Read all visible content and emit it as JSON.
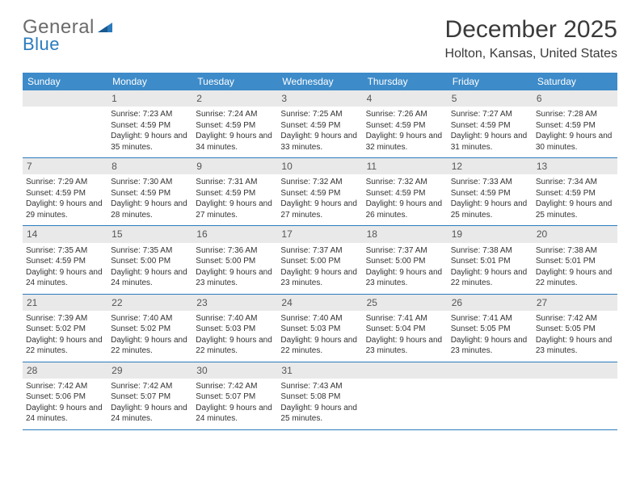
{
  "brand": {
    "part1": "General",
    "part2": "Blue"
  },
  "title": "December 2025",
  "location": "Holton, Kansas, United States",
  "colors": {
    "header_bg": "#3d8bc9",
    "header_text": "#ffffff",
    "daynum_bg": "#e9e9e9",
    "border": "#2b7bbd",
    "brand_gray": "#6b6b6b",
    "brand_blue": "#2b7bbd"
  },
  "weekdays": [
    "Sunday",
    "Monday",
    "Tuesday",
    "Wednesday",
    "Thursday",
    "Friday",
    "Saturday"
  ],
  "start_offset": 1,
  "days": [
    {
      "n": 1,
      "sunrise": "7:23 AM",
      "sunset": "4:59 PM",
      "daylight": "9 hours and 35 minutes."
    },
    {
      "n": 2,
      "sunrise": "7:24 AM",
      "sunset": "4:59 PM",
      "daylight": "9 hours and 34 minutes."
    },
    {
      "n": 3,
      "sunrise": "7:25 AM",
      "sunset": "4:59 PM",
      "daylight": "9 hours and 33 minutes."
    },
    {
      "n": 4,
      "sunrise": "7:26 AM",
      "sunset": "4:59 PM",
      "daylight": "9 hours and 32 minutes."
    },
    {
      "n": 5,
      "sunrise": "7:27 AM",
      "sunset": "4:59 PM",
      "daylight": "9 hours and 31 minutes."
    },
    {
      "n": 6,
      "sunrise": "7:28 AM",
      "sunset": "4:59 PM",
      "daylight": "9 hours and 30 minutes."
    },
    {
      "n": 7,
      "sunrise": "7:29 AM",
      "sunset": "4:59 PM",
      "daylight": "9 hours and 29 minutes."
    },
    {
      "n": 8,
      "sunrise": "7:30 AM",
      "sunset": "4:59 PM",
      "daylight": "9 hours and 28 minutes."
    },
    {
      "n": 9,
      "sunrise": "7:31 AM",
      "sunset": "4:59 PM",
      "daylight": "9 hours and 27 minutes."
    },
    {
      "n": 10,
      "sunrise": "7:32 AM",
      "sunset": "4:59 PM",
      "daylight": "9 hours and 27 minutes."
    },
    {
      "n": 11,
      "sunrise": "7:32 AM",
      "sunset": "4:59 PM",
      "daylight": "9 hours and 26 minutes."
    },
    {
      "n": 12,
      "sunrise": "7:33 AM",
      "sunset": "4:59 PM",
      "daylight": "9 hours and 25 minutes."
    },
    {
      "n": 13,
      "sunrise": "7:34 AM",
      "sunset": "4:59 PM",
      "daylight": "9 hours and 25 minutes."
    },
    {
      "n": 14,
      "sunrise": "7:35 AM",
      "sunset": "4:59 PM",
      "daylight": "9 hours and 24 minutes."
    },
    {
      "n": 15,
      "sunrise": "7:35 AM",
      "sunset": "5:00 PM",
      "daylight": "9 hours and 24 minutes."
    },
    {
      "n": 16,
      "sunrise": "7:36 AM",
      "sunset": "5:00 PM",
      "daylight": "9 hours and 23 minutes."
    },
    {
      "n": 17,
      "sunrise": "7:37 AM",
      "sunset": "5:00 PM",
      "daylight": "9 hours and 23 minutes."
    },
    {
      "n": 18,
      "sunrise": "7:37 AM",
      "sunset": "5:00 PM",
      "daylight": "9 hours and 23 minutes."
    },
    {
      "n": 19,
      "sunrise": "7:38 AM",
      "sunset": "5:01 PM",
      "daylight": "9 hours and 22 minutes."
    },
    {
      "n": 20,
      "sunrise": "7:38 AM",
      "sunset": "5:01 PM",
      "daylight": "9 hours and 22 minutes."
    },
    {
      "n": 21,
      "sunrise": "7:39 AM",
      "sunset": "5:02 PM",
      "daylight": "9 hours and 22 minutes."
    },
    {
      "n": 22,
      "sunrise": "7:40 AM",
      "sunset": "5:02 PM",
      "daylight": "9 hours and 22 minutes."
    },
    {
      "n": 23,
      "sunrise": "7:40 AM",
      "sunset": "5:03 PM",
      "daylight": "9 hours and 22 minutes."
    },
    {
      "n": 24,
      "sunrise": "7:40 AM",
      "sunset": "5:03 PM",
      "daylight": "9 hours and 22 minutes."
    },
    {
      "n": 25,
      "sunrise": "7:41 AM",
      "sunset": "5:04 PM",
      "daylight": "9 hours and 23 minutes."
    },
    {
      "n": 26,
      "sunrise": "7:41 AM",
      "sunset": "5:05 PM",
      "daylight": "9 hours and 23 minutes."
    },
    {
      "n": 27,
      "sunrise": "7:42 AM",
      "sunset": "5:05 PM",
      "daylight": "9 hours and 23 minutes."
    },
    {
      "n": 28,
      "sunrise": "7:42 AM",
      "sunset": "5:06 PM",
      "daylight": "9 hours and 24 minutes."
    },
    {
      "n": 29,
      "sunrise": "7:42 AM",
      "sunset": "5:07 PM",
      "daylight": "9 hours and 24 minutes."
    },
    {
      "n": 30,
      "sunrise": "7:42 AM",
      "sunset": "5:07 PM",
      "daylight": "9 hours and 24 minutes."
    },
    {
      "n": 31,
      "sunrise": "7:43 AM",
      "sunset": "5:08 PM",
      "daylight": "9 hours and 25 minutes."
    }
  ],
  "labels": {
    "sunrise": "Sunrise:",
    "sunset": "Sunset:",
    "daylight": "Daylight:"
  }
}
